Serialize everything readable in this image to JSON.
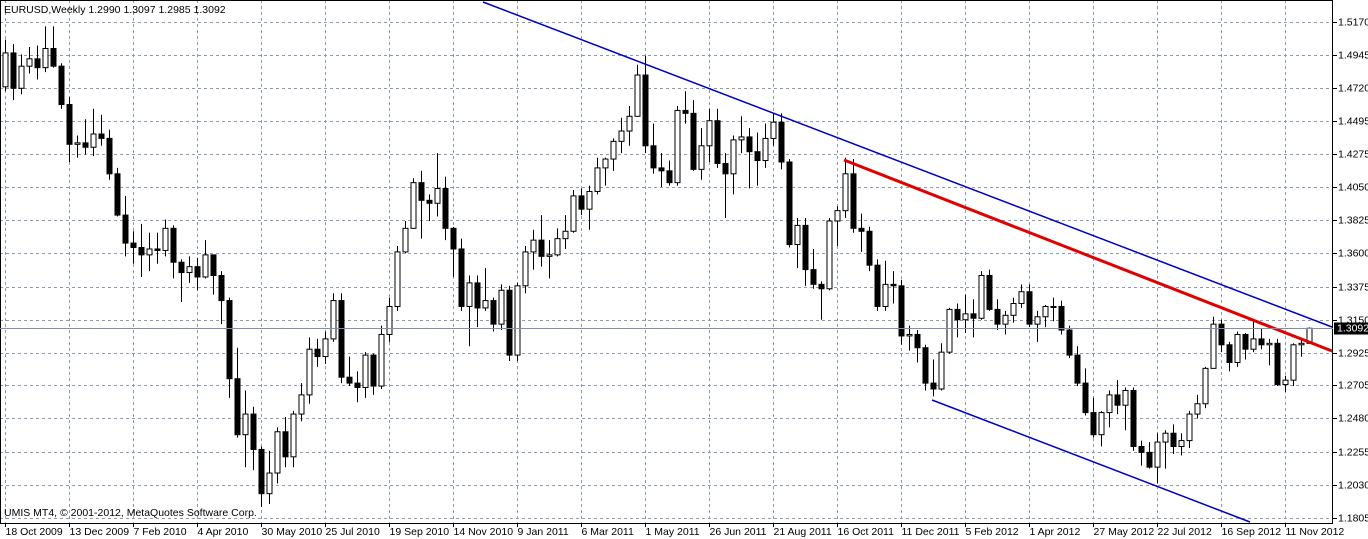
{
  "chart_data": {
    "type": "candlestick",
    "title": "EURUSD,Weekly  1.2990 1.3097 1.2985 1.3092",
    "copyright": "UMIS MT4, © 2001-2012, MetaQuotes Software Corp.",
    "up_color": "#ffffff",
    "down_color": "#000000",
    "grid": true,
    "xlim": [
      -0.625,
      166
    ],
    "ylim": [
      1.1771,
      1.5319
    ],
    "yticks": [
      {
        "value": 1.517,
        "label": "1.5170"
      },
      {
        "value": 1.4945,
        "label": "1.4945"
      },
      {
        "value": 1.472,
        "label": "1.4720"
      },
      {
        "value": 1.4495,
        "label": "1.4495"
      },
      {
        "value": 1.4275,
        "label": "1.4275"
      },
      {
        "value": 1.405,
        "label": "1.4050"
      },
      {
        "value": 1.3825,
        "label": "1.3825"
      },
      {
        "value": 1.36,
        "label": "1.3600"
      },
      {
        "value": 1.3375,
        "label": "1.3375"
      },
      {
        "value": 1.315,
        "label": "1.3150"
      },
      {
        "value": 1.2925,
        "label": "1.2925"
      },
      {
        "value": 1.2705,
        "label": "1.2705"
      },
      {
        "value": 1.248,
        "label": "1.2480"
      },
      {
        "value": 1.2255,
        "label": "1.2255"
      },
      {
        "value": 1.203,
        "label": "1.2030"
      },
      {
        "value": 1.1805,
        "label": "1.1805"
      }
    ],
    "xticks": [
      {
        "value": 0,
        "label": "18 Oct 2009"
      },
      {
        "value": 8,
        "label": "13 Dec 2009"
      },
      {
        "value": 16,
        "label": "7 Feb 2010"
      },
      {
        "value": 24,
        "label": "4 Apr 2010"
      },
      {
        "value": 32,
        "label": "30 May 2010"
      },
      {
        "value": 40,
        "label": "25 Jul 2010"
      },
      {
        "value": 48,
        "label": "19 Sep 2010"
      },
      {
        "value": 56,
        "label": "14 Nov 2010"
      },
      {
        "value": 64,
        "label": "9 Jan 2011"
      },
      {
        "value": 72,
        "label": "6 Mar 2011"
      },
      {
        "value": 80,
        "label": "1 May 2011"
      },
      {
        "value": 88,
        "label": "26 Jun 2011"
      },
      {
        "value": 96,
        "label": "21 Aug 2011"
      },
      {
        "value": 104,
        "label": "16 Oct 2011"
      },
      {
        "value": 112,
        "label": "11 Dec 2011"
      },
      {
        "value": 120,
        "label": "5 Feb 2012"
      },
      {
        "value": 128,
        "label": "1 Apr 2012"
      },
      {
        "value": 136,
        "label": "27 May 2012"
      },
      {
        "value": 144,
        "label": "22 Jul 2012"
      },
      {
        "value": 152,
        "label": "16 Sep 2012"
      },
      {
        "value": 160,
        "label": "11 Nov 2012"
      }
    ],
    "ohlc": [
      [
        1.473,
        1.505,
        1.47,
        1.496
      ],
      [
        1.496,
        1.502,
        1.464,
        1.472
      ],
      [
        1.472,
        1.495,
        1.468,
        1.487
      ],
      [
        1.487,
        1.5,
        1.482,
        1.492
      ],
      [
        1.492,
        1.501,
        1.478,
        1.486
      ],
      [
        1.486,
        1.514,
        1.483,
        1.499
      ],
      [
        1.499,
        1.514,
        1.486,
        1.487
      ],
      [
        1.487,
        1.489,
        1.458,
        1.461
      ],
      [
        1.461,
        1.466,
        1.422,
        1.434
      ],
      [
        1.434,
        1.44,
        1.425,
        1.435
      ],
      [
        1.435,
        1.451,
        1.427,
        1.432
      ],
      [
        1.432,
        1.458,
        1.426,
        1.441
      ],
      [
        1.441,
        1.454,
        1.433,
        1.438
      ],
      [
        1.438,
        1.444,
        1.41,
        1.414
      ],
      [
        1.414,
        1.418,
        1.385,
        1.386
      ],
      [
        1.386,
        1.399,
        1.358,
        1.367
      ],
      [
        1.367,
        1.375,
        1.353,
        1.364
      ],
      [
        1.364,
        1.38,
        1.344,
        1.359
      ],
      [
        1.359,
        1.374,
        1.348,
        1.363
      ],
      [
        1.363,
        1.374,
        1.353,
        1.362
      ],
      [
        1.362,
        1.383,
        1.358,
        1.377
      ],
      [
        1.377,
        1.379,
        1.343,
        1.354
      ],
      [
        1.354,
        1.356,
        1.327,
        1.347
      ],
      [
        1.347,
        1.358,
        1.34,
        1.351
      ],
      [
        1.351,
        1.357,
        1.335,
        1.344
      ],
      [
        1.344,
        1.369,
        1.343,
        1.359
      ],
      [
        1.359,
        1.359,
        1.332,
        1.345
      ],
      [
        1.345,
        1.348,
        1.312,
        1.328
      ],
      [
        1.328,
        1.33,
        1.262,
        1.275
      ],
      [
        1.275,
        1.296,
        1.235,
        1.237
      ],
      [
        1.237,
        1.267,
        1.215,
        1.251
      ],
      [
        1.251,
        1.256,
        1.213,
        1.227
      ],
      [
        1.227,
        1.229,
        1.188,
        1.197
      ],
      [
        1.197,
        1.226,
        1.19,
        1.211
      ],
      [
        1.211,
        1.242,
        1.204,
        1.239
      ],
      [
        1.239,
        1.249,
        1.215,
        1.222
      ],
      [
        1.222,
        1.253,
        1.215,
        1.251
      ],
      [
        1.251,
        1.272,
        1.246,
        1.264
      ],
      [
        1.264,
        1.303,
        1.258,
        1.295
      ],
      [
        1.295,
        1.302,
        1.283,
        1.29
      ],
      [
        1.29,
        1.307,
        1.285,
        1.302
      ],
      [
        1.302,
        1.333,
        1.3,
        1.328
      ],
      [
        1.328,
        1.333,
        1.272,
        1.276
      ],
      [
        1.276,
        1.29,
        1.27,
        1.272
      ],
      [
        1.272,
        1.28,
        1.259,
        1.269
      ],
      [
        1.269,
        1.293,
        1.262,
        1.291
      ],
      [
        1.291,
        1.292,
        1.264,
        1.27
      ],
      [
        1.27,
        1.311,
        1.268,
        1.305
      ],
      [
        1.305,
        1.33,
        1.3,
        1.324
      ],
      [
        1.324,
        1.365,
        1.321,
        1.361
      ],
      [
        1.361,
        1.382,
        1.36,
        1.377
      ],
      [
        1.377,
        1.411,
        1.377,
        1.408
      ],
      [
        1.408,
        1.416,
        1.37,
        1.396
      ],
      [
        1.396,
        1.4,
        1.382,
        1.394
      ],
      [
        1.394,
        1.428,
        1.385,
        1.404
      ],
      [
        1.404,
        1.412,
        1.369,
        1.377
      ],
      [
        1.377,
        1.378,
        1.344,
        1.363
      ],
      [
        1.363,
        1.37,
        1.321,
        1.324
      ],
      [
        1.324,
        1.345,
        1.297,
        1.34
      ],
      [
        1.34,
        1.345,
        1.31,
        1.323
      ],
      [
        1.323,
        1.35,
        1.321,
        1.328
      ],
      [
        1.328,
        1.33,
        1.307,
        1.312
      ],
      [
        1.312,
        1.339,
        1.308,
        1.335
      ],
      [
        1.335,
        1.338,
        1.287,
        1.291
      ],
      [
        1.291,
        1.34,
        1.287,
        1.338
      ],
      [
        1.338,
        1.365,
        1.333,
        1.361
      ],
      [
        1.361,
        1.376,
        1.349,
        1.369
      ],
      [
        1.369,
        1.386,
        1.351,
        1.358
      ],
      [
        1.358,
        1.369,
        1.343,
        1.359
      ],
      [
        1.359,
        1.377,
        1.358,
        1.37
      ],
      [
        1.37,
        1.386,
        1.363,
        1.375
      ],
      [
        1.375,
        1.403,
        1.374,
        1.399
      ],
      [
        1.399,
        1.404,
        1.386,
        1.39
      ],
      [
        1.39,
        1.406,
        1.376,
        1.402
      ],
      [
        1.402,
        1.425,
        1.4,
        1.418
      ],
      [
        1.418,
        1.425,
        1.406,
        1.424
      ],
      [
        1.424,
        1.438,
        1.416,
        1.436
      ],
      [
        1.436,
        1.452,
        1.428,
        1.443
      ],
      [
        1.443,
        1.46,
        1.433,
        1.453
      ],
      [
        1.453,
        1.488,
        1.453,
        1.481
      ],
      [
        1.481,
        1.494,
        1.428,
        1.433
      ],
      [
        1.433,
        1.448,
        1.414,
        1.418
      ],
      [
        1.418,
        1.428,
        1.405,
        1.416
      ],
      [
        1.416,
        1.423,
        1.406,
        1.408
      ],
      [
        1.408,
        1.46,
        1.406,
        1.457
      ],
      [
        1.457,
        1.47,
        1.448,
        1.455
      ],
      [
        1.455,
        1.464,
        1.416,
        1.417
      ],
      [
        1.417,
        1.445,
        1.41,
        1.433
      ],
      [
        1.433,
        1.458,
        1.422,
        1.45
      ],
      [
        1.45,
        1.458,
        1.418,
        1.421
      ],
      [
        1.421,
        1.428,
        1.384,
        1.414
      ],
      [
        1.414,
        1.44,
        1.4,
        1.437
      ],
      [
        1.437,
        1.453,
        1.428,
        1.439
      ],
      [
        1.439,
        1.445,
        1.404,
        1.429
      ],
      [
        1.429,
        1.442,
        1.406,
        1.423
      ],
      [
        1.423,
        1.448,
        1.418,
        1.438
      ],
      [
        1.438,
        1.455,
        1.433,
        1.449
      ],
      [
        1.449,
        1.455,
        1.417,
        1.422
      ],
      [
        1.422,
        1.424,
        1.364,
        1.366
      ],
      [
        1.366,
        1.384,
        1.35,
        1.379
      ],
      [
        1.379,
        1.384,
        1.338,
        1.349
      ],
      [
        1.349,
        1.363,
        1.336,
        1.339
      ],
      [
        1.339,
        1.341,
        1.315,
        1.336
      ],
      [
        1.336,
        1.384,
        1.335,
        1.382
      ],
      [
        1.382,
        1.392,
        1.365,
        1.389
      ],
      [
        1.389,
        1.425,
        1.384,
        1.414
      ],
      [
        1.414,
        1.424,
        1.374,
        1.377
      ],
      [
        1.377,
        1.387,
        1.361,
        1.375
      ],
      [
        1.375,
        1.378,
        1.348,
        1.352
      ],
      [
        1.352,
        1.356,
        1.321,
        1.324
      ],
      [
        1.324,
        1.355,
        1.321,
        1.339
      ],
      [
        1.339,
        1.348,
        1.326,
        1.338
      ],
      [
        1.338,
        1.342,
        1.298,
        1.304
      ],
      [
        1.304,
        1.311,
        1.294,
        1.305
      ],
      [
        1.305,
        1.308,
        1.286,
        1.296
      ],
      [
        1.296,
        1.298,
        1.267,
        1.272
      ],
      [
        1.272,
        1.288,
        1.263,
        1.268
      ],
      [
        1.268,
        1.299,
        1.267,
        1.293
      ],
      [
        1.293,
        1.323,
        1.292,
        1.322
      ],
      [
        1.322,
        1.326,
        1.303,
        1.315
      ],
      [
        1.315,
        1.332,
        1.306,
        1.319
      ],
      [
        1.319,
        1.329,
        1.303,
        1.316
      ],
      [
        1.316,
        1.348,
        1.315,
        1.345
      ],
      [
        1.345,
        1.349,
        1.321,
        1.322
      ],
      [
        1.322,
        1.329,
        1.308,
        1.312
      ],
      [
        1.312,
        1.321,
        1.305,
        1.318
      ],
      [
        1.318,
        1.33,
        1.313,
        1.326
      ],
      [
        1.326,
        1.339,
        1.323,
        1.334
      ],
      [
        1.334,
        1.339,
        1.31,
        1.312
      ],
      [
        1.312,
        1.321,
        1.3,
        1.317
      ],
      [
        1.317,
        1.325,
        1.31,
        1.324
      ],
      [
        1.324,
        1.33,
        1.314,
        1.324
      ],
      [
        1.324,
        1.328,
        1.305,
        1.308
      ],
      [
        1.308,
        1.311,
        1.289,
        1.291
      ],
      [
        1.291,
        1.297,
        1.27,
        1.272
      ],
      [
        1.272,
        1.282,
        1.25,
        1.252
      ],
      [
        1.252,
        1.262,
        1.235,
        1.237
      ],
      [
        1.237,
        1.253,
        1.229,
        1.252
      ],
      [
        1.252,
        1.267,
        1.242,
        1.264
      ],
      [
        1.264,
        1.274,
        1.251,
        1.257
      ],
      [
        1.257,
        1.269,
        1.24,
        1.267
      ],
      [
        1.267,
        1.269,
        1.226,
        1.229
      ],
      [
        1.229,
        1.233,
        1.216,
        1.225
      ],
      [
        1.225,
        1.232,
        1.214,
        1.215
      ],
      [
        1.215,
        1.238,
        1.204,
        1.232
      ],
      [
        1.232,
        1.24,
        1.214,
        1.238
      ],
      [
        1.238,
        1.244,
        1.224,
        1.229
      ],
      [
        1.229,
        1.238,
        1.223,
        1.233
      ],
      [
        1.233,
        1.253,
        1.228,
        1.251
      ],
      [
        1.251,
        1.264,
        1.248,
        1.258
      ],
      [
        1.258,
        1.283,
        1.255,
        1.282
      ],
      [
        1.282,
        1.317,
        1.282,
        1.312
      ],
      [
        1.312,
        1.315,
        1.293,
        1.298
      ],
      [
        1.298,
        1.3,
        1.28,
        1.286
      ],
      [
        1.286,
        1.307,
        1.283,
        1.305
      ],
      [
        1.305,
        1.306,
        1.288,
        1.295
      ],
      [
        1.295,
        1.314,
        1.293,
        1.302
      ],
      [
        1.302,
        1.309,
        1.295,
        1.298
      ],
      [
        1.298,
        1.302,
        1.284,
        1.299
      ],
      [
        1.299,
        1.302,
        1.27,
        1.271
      ],
      [
        1.271,
        1.277,
        1.266,
        1.274
      ],
      [
        1.274,
        1.299,
        1.27,
        1.298
      ],
      [
        1.298,
        1.301,
        1.29,
        1.299
      ],
      [
        1.299,
        1.3097,
        1.2985,
        1.3092
      ]
    ]
  }
}
